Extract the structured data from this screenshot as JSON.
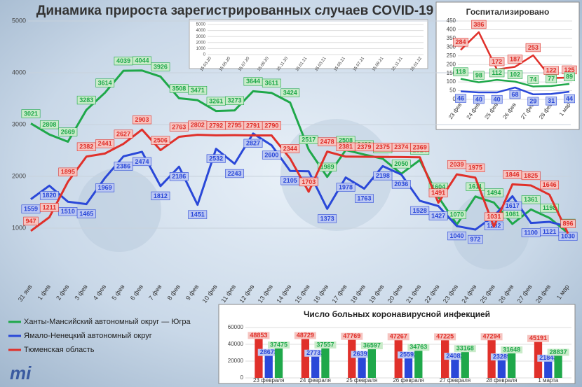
{
  "chart_data": [
    {
      "type": "line",
      "title": "Динамика прироста зарегистрированных случаев COVID-19",
      "categories": [
        "31 янв",
        "1 фев",
        "2 фев",
        "3 фев",
        "4 фев",
        "5 фев",
        "6 фев",
        "7 фев",
        "8 фев",
        "9 фев",
        "10 фев",
        "11 фев",
        "12 фев",
        "13 фев",
        "14 фев",
        "15 фев",
        "16 фев",
        "17 фев",
        "18 фев",
        "19 фев",
        "20 фев",
        "21 фев",
        "22 фев",
        "23 фев",
        "24 фев",
        "25 фев",
        "26 фев",
        "27 фев",
        "28 фев",
        "1 мар"
      ],
      "series": [
        {
          "name": "Ханты-Мансийский автономный округ — Югра",
          "color": "#1fa84a",
          "values": [
            3021,
            2808,
            2669,
            3283,
            3614,
            4039,
            4044,
            3926,
            3508,
            3471,
            3261,
            3273,
            3644,
            3611,
            3424,
            2517,
            1989,
            2508,
            2422,
            2341,
            2050,
            2314,
            1604,
            1070,
            1611,
            1494,
            1081,
            1361,
            1198,
            906
          ]
        },
        {
          "name": "Ямало-Ненецкий автономный округ",
          "color": "#2a48d8",
          "values": [
            1559,
            1820,
            1510,
            1465,
            1969,
            2386,
            2474,
            1812,
            2186,
            1451,
            2532,
            2243,
            2827,
            2600,
            2105,
            2098,
            1373,
            1978,
            1763,
            2198,
            2036,
            1528,
            1427,
            1040,
            972,
            1232,
            1617,
            1100,
            1121,
            1030
          ]
        },
        {
          "name": "Тюменская область",
          "color": "#e0302a",
          "values": [
            947,
            1211,
            1895,
            2382,
            2441,
            2627,
            2903,
            2506,
            2763,
            2802,
            2792,
            2795,
            2791,
            2790,
            2344,
            1703,
            2478,
            2381,
            2379,
            2375,
            2374,
            2369,
            1491,
            2039,
            1975,
            1031,
            1846,
            1825,
            1646,
            896
          ]
        }
      ],
      "ylim": [
        0,
        5000
      ],
      "yticks": [
        1000,
        2000,
        3000,
        4000,
        5000
      ],
      "grid": true,
      "legend": "bottom-left"
    },
    {
      "type": "line",
      "title": "Госпитализировано",
      "categories": [
        "23 фев",
        "24 фев",
        "25 фев",
        "26 фев",
        "27 фев",
        "28 фев",
        "1 мар"
      ],
      "series": [
        {
          "color": "#e0302a",
          "values": [
            284,
            386,
            172,
            187,
            253,
            122,
            125
          ]
        },
        {
          "color": "#1fa84a",
          "values": [
            118,
            98,
            112,
            102,
            74,
            77,
            89
          ]
        },
        {
          "color": "#2a48d8",
          "values": [
            46,
            40,
            40,
            68,
            29,
            31,
            44
          ]
        }
      ],
      "ylim": [
        0,
        450
      ],
      "yticks": [
        0,
        50,
        100,
        150,
        200,
        250,
        300,
        350,
        400,
        450
      ],
      "grid": true
    },
    {
      "type": "bar",
      "title": "Число больных коронавирусной инфекцией",
      "categories": [
        "23 февраля",
        "24 февраля",
        "25 февраля",
        "26 февраля",
        "27 февраля",
        "28 февраля",
        "1 марта"
      ],
      "series": [
        {
          "color": "#e0302a",
          "values": [
            48853,
            48729,
            47769,
            47267,
            47225,
            47294,
            45191
          ]
        },
        {
          "color": "#2a48d8",
          "values": [
            28673,
            27731,
            26391,
            25592,
            24082,
            23289,
            21843
          ]
        },
        {
          "color": "#1fa84a",
          "values": [
            37475,
            37557,
            36597,
            34763,
            33168,
            31648,
            28837
          ]
        }
      ],
      "ylim": [
        0,
        60000
      ],
      "yticks": [
        0,
        20000,
        40000,
        60000
      ],
      "grid": true
    },
    {
      "type": "line",
      "categories": [
        "15.03.20",
        "15.05.20",
        "15.07.20",
        "15.09.20",
        "15.11.20",
        "15.01.21",
        "15.03.21",
        "15.05.21",
        "15.07.21",
        "15.09.21",
        "15.11.21",
        "15.01.22"
      ],
      "series": [],
      "ylim": [
        0,
        5000
      ],
      "yticks": [
        0,
        1000,
        2000,
        3000,
        4000,
        5000
      ],
      "grid": true
    }
  ]
}
